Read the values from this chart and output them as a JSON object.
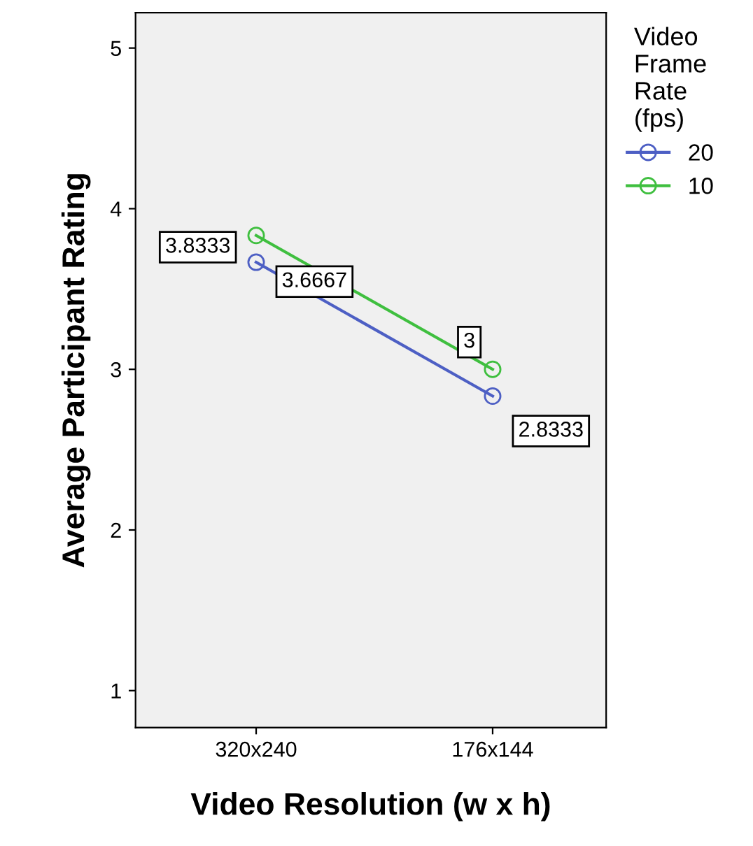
{
  "chart_data": {
    "type": "line",
    "xlabel": "Video Resolution (w x h)",
    "ylabel": "Average Participant Rating",
    "legend_title": "Video\nFrame\nRate\n(fps)",
    "categories": [
      "320x240",
      "176x144"
    ],
    "series": [
      {
        "name": "20",
        "color": "#4d5fc4",
        "values": [
          3.6667,
          2.8333
        ],
        "value_labels": [
          "3.6667",
          "2.8333"
        ]
      },
      {
        "name": "10",
        "color": "#3fbf3f",
        "values": [
          3.8333,
          3
        ],
        "value_labels": [
          "3.8333",
          "3"
        ]
      }
    ],
    "ylim": [
      0.77,
      5.22
    ],
    "yticks": [
      1,
      2,
      3,
      4,
      5
    ],
    "marker": "circle",
    "line_style": "solid",
    "grid": false,
    "legend": "right"
  }
}
